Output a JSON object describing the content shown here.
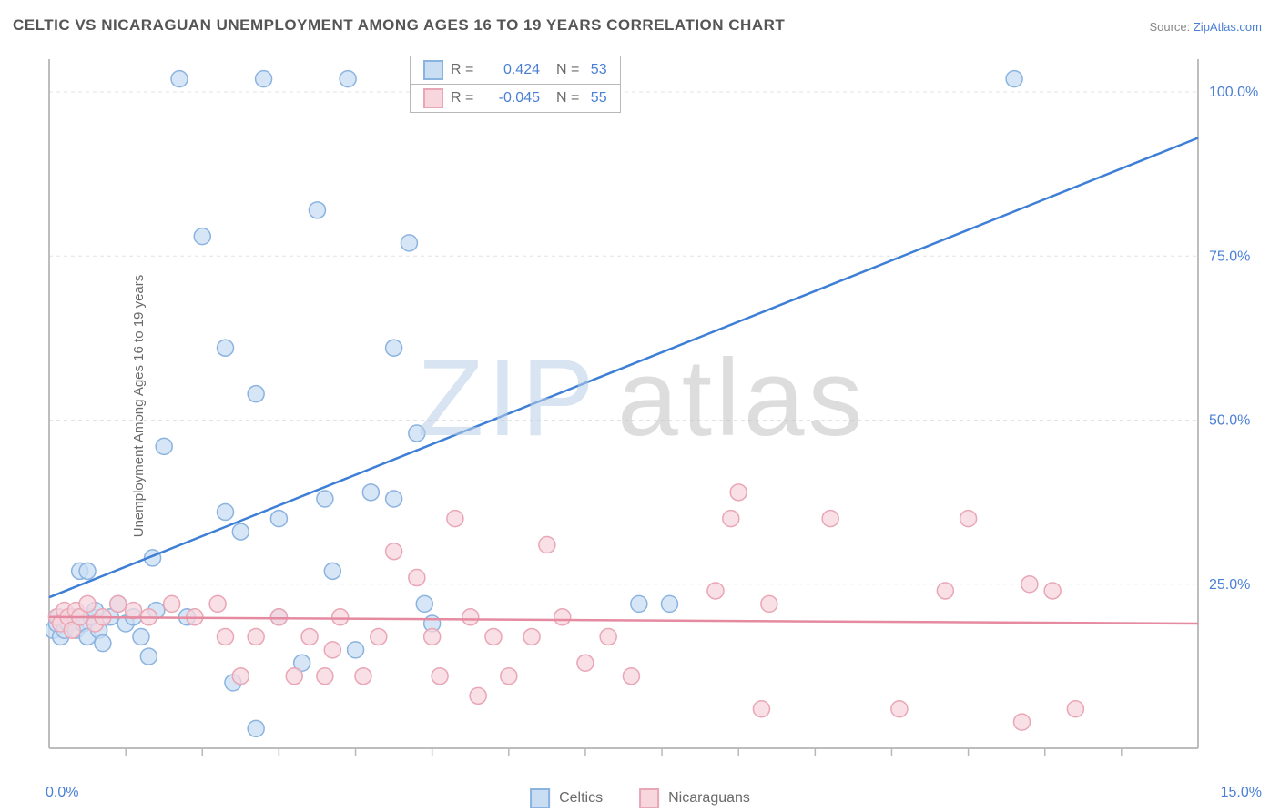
{
  "title": "CELTIC VS NICARAGUAN UNEMPLOYMENT AMONG AGES 16 TO 19 YEARS CORRELATION CHART",
  "source_label": "Source: ",
  "source_value": "ZipAtlas.com",
  "ylabel": "Unemployment Among Ages 16 to 19 years",
  "watermark_a": "ZIP",
  "watermark_b": "atlas",
  "chart": {
    "type": "scatter",
    "xlim": [
      0,
      15
    ],
    "ylim": [
      0,
      105
    ],
    "x_ticks": [
      0,
      15
    ],
    "x_tick_labels": [
      "0.0%",
      "15.0%"
    ],
    "x_minor_ticks": [
      1,
      2,
      3,
      4,
      5,
      6,
      7,
      8,
      9,
      10,
      11,
      12,
      13,
      14
    ],
    "y_ticks": [
      25,
      50,
      75,
      100
    ],
    "y_tick_labels": [
      "25.0%",
      "50.0%",
      "75.0%",
      "100.0%"
    ],
    "grid_color": "#e3e3e3",
    "axis_color": "#bdbdbd",
    "tick_color": "#b8b8b8",
    "background_color": "#ffffff",
    "marker_radius": 9,
    "marker_stroke_width": 1.5,
    "line_width": 2.5,
    "series": [
      {
        "name": "Celtics",
        "color_fill": "#c9ddf3",
        "color_stroke": "#8bb3e0",
        "line_color": "#3d7fd6",
        "R": "0.424",
        "N": "53",
        "trend": {
          "x1": 0,
          "y1": 23,
          "x2": 15,
          "y2": 93
        },
        "points": [
          [
            0.05,
            18
          ],
          [
            0.1,
            19
          ],
          [
            0.12,
            20
          ],
          [
            0.15,
            17
          ],
          [
            0.2,
            18
          ],
          [
            0.25,
            19
          ],
          [
            0.3,
            20
          ],
          [
            0.35,
            18
          ],
          [
            0.4,
            27
          ],
          [
            0.45,
            19
          ],
          [
            0.5,
            17
          ],
          [
            0.5,
            27
          ],
          [
            0.55,
            20
          ],
          [
            0.6,
            21
          ],
          [
            0.65,
            18
          ],
          [
            0.7,
            16
          ],
          [
            0.8,
            20
          ],
          [
            0.9,
            22
          ],
          [
            1.0,
            19
          ],
          [
            1.1,
            20
          ],
          [
            1.2,
            17
          ],
          [
            1.3,
            14
          ],
          [
            1.35,
            29
          ],
          [
            1.4,
            21
          ],
          [
            1.5,
            46
          ],
          [
            1.7,
            102
          ],
          [
            1.8,
            20
          ],
          [
            2.0,
            78
          ],
          [
            2.3,
            36
          ],
          [
            2.3,
            61
          ],
          [
            2.4,
            10
          ],
          [
            2.5,
            33
          ],
          [
            2.7,
            54
          ],
          [
            2.7,
            3
          ],
          [
            2.8,
            102
          ],
          [
            3.0,
            20
          ],
          [
            3.0,
            35
          ],
          [
            3.3,
            13
          ],
          [
            3.5,
            82
          ],
          [
            3.6,
            38
          ],
          [
            3.7,
            27
          ],
          [
            3.9,
            102
          ],
          [
            4.0,
            15
          ],
          [
            4.2,
            39
          ],
          [
            4.5,
            61
          ],
          [
            4.5,
            38
          ],
          [
            4.7,
            77
          ],
          [
            4.8,
            48
          ],
          [
            4.9,
            22
          ],
          [
            7.7,
            22
          ],
          [
            8.1,
            22
          ],
          [
            12.6,
            102
          ],
          [
            5.0,
            19
          ]
        ]
      },
      {
        "name": "Nicaraguans",
        "color_fill": "#f7d6de",
        "color_stroke": "#e9a6b5",
        "line_color": "#e58aa0",
        "R": "-0.045",
        "N": "55",
        "trend": {
          "x1": 0,
          "y1": 20,
          "x2": 15,
          "y2": 19
        },
        "points": [
          [
            0.1,
            20
          ],
          [
            0.15,
            19
          ],
          [
            0.2,
            21
          ],
          [
            0.25,
            20
          ],
          [
            0.3,
            18
          ],
          [
            0.35,
            21
          ],
          [
            0.4,
            20
          ],
          [
            0.5,
            22
          ],
          [
            0.6,
            19
          ],
          [
            0.7,
            20
          ],
          [
            0.9,
            22
          ],
          [
            1.1,
            21
          ],
          [
            1.3,
            20
          ],
          [
            1.6,
            22
          ],
          [
            1.9,
            20
          ],
          [
            2.2,
            22
          ],
          [
            2.3,
            17
          ],
          [
            2.5,
            11
          ],
          [
            2.7,
            17
          ],
          [
            3.0,
            20
          ],
          [
            3.2,
            11
          ],
          [
            3.4,
            17
          ],
          [
            3.6,
            11
          ],
          [
            3.7,
            15
          ],
          [
            3.8,
            20
          ],
          [
            4.1,
            11
          ],
          [
            4.3,
            17
          ],
          [
            4.5,
            30
          ],
          [
            4.8,
            26
          ],
          [
            5.0,
            17
          ],
          [
            5.1,
            11
          ],
          [
            5.3,
            35
          ],
          [
            5.5,
            20
          ],
          [
            5.6,
            8
          ],
          [
            5.8,
            17
          ],
          [
            6.0,
            11
          ],
          [
            6.3,
            17
          ],
          [
            6.5,
            31
          ],
          [
            6.7,
            20
          ],
          [
            7.0,
            13
          ],
          [
            7.3,
            17
          ],
          [
            7.6,
            11
          ],
          [
            8.7,
            24
          ],
          [
            8.9,
            35
          ],
          [
            9.0,
            39
          ],
          [
            9.3,
            6
          ],
          [
            9.4,
            22
          ],
          [
            10.2,
            35
          ],
          [
            11.1,
            6
          ],
          [
            11.7,
            24
          ],
          [
            12.0,
            35
          ],
          [
            12.7,
            4
          ],
          [
            12.8,
            25
          ],
          [
            13.1,
            24
          ],
          [
            13.4,
            6
          ]
        ]
      }
    ]
  },
  "r_legend": {
    "R_label": "R =",
    "N_label": "N ="
  },
  "bottom_legend": [
    "Celtics",
    "Nicaraguans"
  ]
}
